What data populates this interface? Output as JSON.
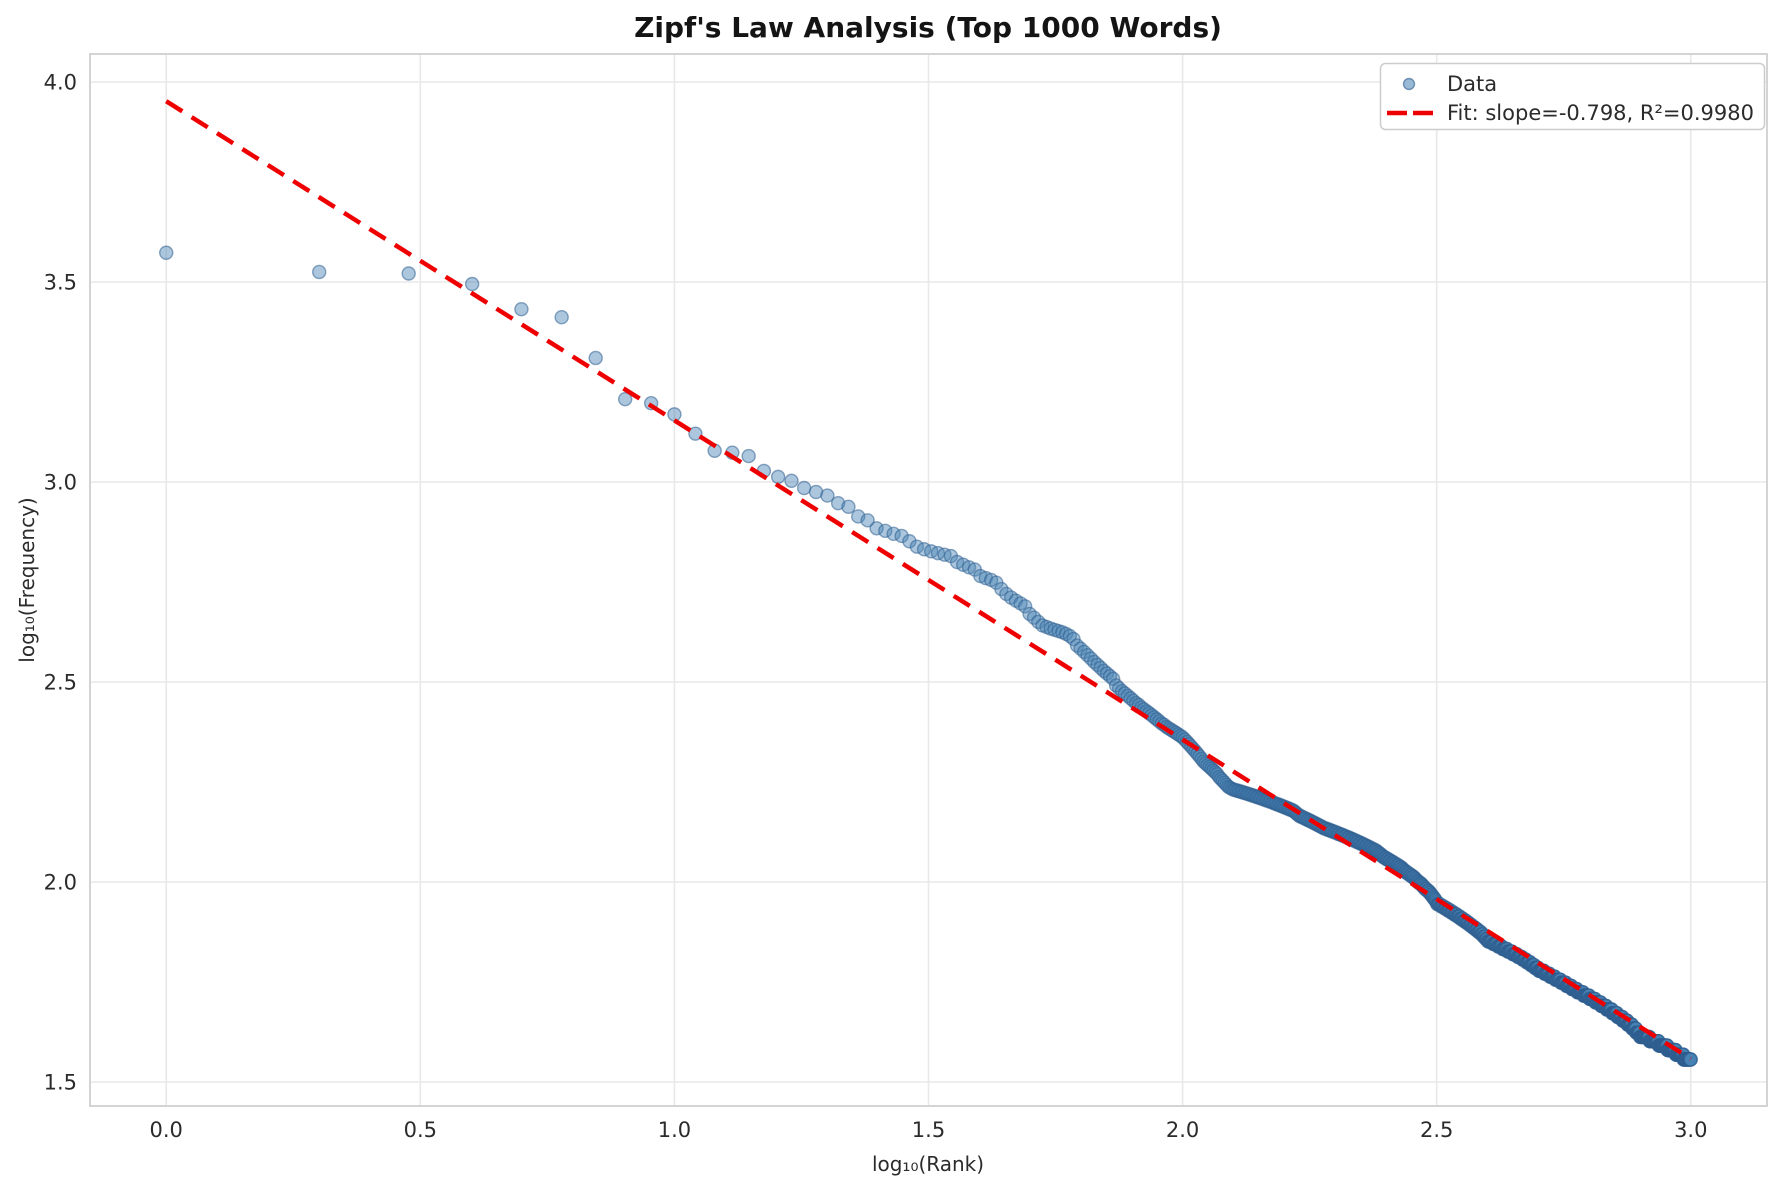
{
  "figure": {
    "background": "#ffffff"
  },
  "chart_data": {
    "type": "scatter",
    "title": "Zipf's Law Analysis (Top 1000 Words)",
    "xlabel": "log₁₀(Rank)",
    "ylabel": "log₁₀(Frequency)",
    "xlim": [
      -0.15,
      3.15
    ],
    "ylim": [
      1.44,
      4.07
    ],
    "grid": true,
    "xticks": {
      "values": [
        0.0,
        0.5,
        1.0,
        1.5,
        2.0,
        2.5,
        3.0
      ],
      "labels": [
        "0.0",
        "0.5",
        "1.0",
        "1.5",
        "2.0",
        "2.5",
        "3.0"
      ]
    },
    "yticks": {
      "values": [
        1.5,
        2.0,
        2.5,
        3.0,
        3.5,
        4.0
      ],
      "labels": [
        "1.5",
        "2.0",
        "2.5",
        "3.0",
        "3.5",
        "4.0"
      ]
    },
    "colors": {
      "scatter_fill": "#4682b4",
      "scatter_edge": "#2f5f8f",
      "fit_line": "#ee0000",
      "grid_line": "#e8e8e8",
      "spine": "#d0d0d0",
      "text": "#2b2b2b"
    },
    "legend": {
      "position": "upper right",
      "entries": [
        {
          "label": "Data",
          "marker": "circle",
          "color": "#4682b4"
        },
        {
          "label": "Fit: slope=-0.798, R²=0.9980",
          "marker": "dashed-line",
          "color": "#ee0000"
        }
      ]
    },
    "series": [
      {
        "name": "Data",
        "kind": "scatter",
        "color": "#4682b4",
        "alpha": 0.5,
        "x_axis": "log10(rank)",
        "y_axis": "log10(frequency)",
        "rank_frequency_runs": [
          [
            3742,
            1
          ],
          [
            3350,
            1
          ],
          [
            3321,
            1
          ],
          [
            3126,
            1
          ],
          [
            2704,
            1
          ],
          [
            2582,
            1
          ],
          [
            2042,
            1
          ],
          [
            1611,
            1
          ],
          [
            1574,
            1
          ],
          [
            1476,
            1
          ],
          [
            1321,
            1
          ],
          [
            1197,
            1
          ],
          [
            1184,
            1
          ],
          [
            1161,
            1
          ],
          [
            1066,
            1
          ],
          [
            1030,
            1
          ],
          [
            1007,
            1
          ],
          [
            966,
            1
          ],
          [
            944,
            1
          ],
          [
            925,
            1
          ],
          [
            885,
            1
          ],
          [
            867,
            1
          ],
          [
            820,
            1
          ],
          [
            802,
            1
          ],
          [
            766,
            1
          ],
          [
            755,
            1
          ],
          [
            742,
            1
          ],
          [
            733,
            1
          ],
          [
            711,
            1
          ],
          [
            689,
            1
          ],
          [
            679,
            1
          ],
          [
            671,
            1
          ],
          [
            664,
            1
          ],
          [
            658,
            1
          ],
          [
            653,
            1
          ],
          [
            631,
            1
          ],
          [
            621,
            1
          ],
          [
            612,
            1
          ],
          [
            604,
            1
          ],
          [
            582,
            1
          ],
          [
            575,
            1
          ],
          [
            569,
            1
          ],
          [
            560,
            1
          ],
          [
            540,
            1
          ],
          [
            525,
            1
          ],
          [
            514,
            1
          ],
          [
            505,
            1
          ],
          [
            497,
            1
          ],
          [
            489,
            1
          ],
          [
            468,
            1
          ],
          [
            458,
            1
          ],
          [
            447,
            1
          ],
          [
            438,
            1
          ],
          [
            434,
            1
          ],
          [
            430,
            1
          ],
          [
            427,
            1
          ],
          [
            424,
            1
          ],
          [
            421,
            1
          ],
          [
            417,
            1
          ],
          [
            412,
            1
          ],
          [
            405,
            1
          ],
          [
            390,
            1
          ],
          [
            383,
            1
          ],
          [
            376,
            1
          ],
          [
            369,
            1
          ],
          [
            362,
            1
          ],
          [
            355,
            1
          ],
          [
            349,
            1
          ],
          [
            343,
            1
          ],
          [
            337,
            1
          ],
          [
            332,
            1
          ],
          [
            327,
            1
          ],
          [
            322,
            1
          ],
          [
            310,
            1
          ],
          [
            305,
            1
          ],
          [
            300,
            1
          ],
          [
            296,
            1
          ],
          [
            292,
            1
          ],
          [
            288,
            1
          ],
          [
            284,
            1
          ],
          [
            280,
            1
          ],
          [
            277,
            1
          ],
          [
            273,
            1
          ],
          [
            270,
            1
          ],
          [
            267,
            1
          ],
          [
            264,
            1
          ],
          [
            261,
            1
          ],
          [
            258,
            1
          ],
          [
            255,
            1
          ],
          [
            252,
            1
          ],
          [
            249,
            1
          ],
          [
            247,
            1
          ],
          [
            244,
            1
          ],
          [
            242,
            1
          ],
          [
            240,
            1
          ],
          [
            238,
            1
          ],
          [
            236,
            1
          ],
          [
            234,
            1
          ],
          [
            232,
            1
          ],
          [
            230,
            1
          ],
          [
            227,
            1
          ],
          [
            224,
            1
          ],
          [
            221,
            1
          ],
          [
            218,
            1
          ],
          [
            215,
            1
          ],
          [
            212,
            1
          ],
          [
            209,
            1
          ],
          [
            206,
            1
          ],
          [
            203,
            1
          ],
          [
            200,
            1
          ],
          [
            198,
            1
          ],
          [
            196,
            1
          ],
          [
            194,
            1
          ],
          [
            192,
            1
          ],
          [
            190,
            1
          ],
          [
            188,
            1
          ],
          [
            186,
            1
          ],
          [
            183,
            1
          ],
          [
            181,
            1
          ],
          [
            179,
            1
          ],
          [
            177,
            1
          ],
          [
            175,
            1
          ],
          [
            173,
            1
          ],
          [
            172,
            1
          ],
          [
            171,
            1
          ],
          [
            170,
            2
          ],
          [
            169,
            2
          ],
          [
            168,
            2
          ],
          [
            167,
            2
          ],
          [
            166,
            2
          ],
          [
            165,
            2
          ],
          [
            164,
            2
          ],
          [
            163,
            2
          ],
          [
            162,
            2
          ],
          [
            161,
            2
          ],
          [
            160,
            2
          ],
          [
            159,
            2
          ],
          [
            158,
            2
          ],
          [
            157,
            2
          ],
          [
            156,
            2
          ],
          [
            155,
            2
          ],
          [
            154,
            2
          ],
          [
            153,
            2
          ],
          [
            152,
            2
          ],
          [
            151,
            2
          ],
          [
            150,
            1
          ],
          [
            149,
            1
          ],
          [
            148,
            1
          ],
          [
            147,
            1
          ],
          [
            146,
            2
          ],
          [
            145,
            2
          ],
          [
            144,
            2
          ],
          [
            143,
            2
          ],
          [
            142,
            2
          ],
          [
            141,
            2
          ],
          [
            140,
            2
          ],
          [
            139,
            2
          ],
          [
            138,
            2
          ],
          [
            137,
            2
          ],
          [
            136,
            3
          ],
          [
            135,
            3
          ],
          [
            134,
            3
          ],
          [
            133,
            3
          ],
          [
            132,
            3
          ],
          [
            131,
            3
          ],
          [
            130,
            3
          ],
          [
            129,
            3
          ],
          [
            128,
            3
          ],
          [
            127,
            3
          ],
          [
            126,
            3
          ],
          [
            125,
            3
          ],
          [
            124,
            3
          ],
          [
            123,
            3
          ],
          [
            122,
            3
          ],
          [
            121,
            3
          ],
          [
            120,
            3
          ],
          [
            119,
            2
          ],
          [
            118,
            2
          ],
          [
            117,
            2
          ],
          [
            116,
            2
          ],
          [
            115,
            3
          ],
          [
            114,
            3
          ],
          [
            113,
            3
          ],
          [
            112,
            3
          ],
          [
            111,
            3
          ],
          [
            110,
            3
          ],
          [
            109,
            3
          ],
          [
            108,
            2
          ],
          [
            107,
            2
          ],
          [
            106,
            3
          ],
          [
            105,
            3
          ],
          [
            104,
            3
          ],
          [
            103,
            3
          ],
          [
            102,
            2
          ],
          [
            101,
            2
          ],
          [
            100,
            3
          ],
          [
            99,
            3
          ],
          [
            98,
            2
          ],
          [
            97,
            2
          ],
          [
            96,
            3
          ],
          [
            95,
            3
          ],
          [
            94,
            2
          ],
          [
            93,
            2
          ],
          [
            92,
            2
          ],
          [
            91,
            2
          ],
          [
            90,
            2
          ],
          [
            89,
            1
          ],
          [
            88,
            5
          ],
          [
            87,
            5
          ],
          [
            86,
            5
          ],
          [
            85,
            5
          ],
          [
            84,
            5
          ],
          [
            83,
            5
          ],
          [
            82,
            5
          ],
          [
            81,
            5
          ],
          [
            80,
            5
          ],
          [
            79,
            5
          ],
          [
            78,
            5
          ],
          [
            77,
            5
          ],
          [
            76,
            5
          ],
          [
            75,
            5
          ],
          [
            74,
            4
          ],
          [
            73,
            4
          ],
          [
            72,
            4
          ],
          [
            71,
            9
          ],
          [
            70,
            9
          ],
          [
            69,
            9
          ],
          [
            68,
            10
          ],
          [
            67,
            10
          ],
          [
            66,
            10
          ],
          [
            65,
            10
          ],
          [
            64,
            9
          ],
          [
            63,
            9
          ],
          [
            62,
            9
          ],
          [
            61,
            9
          ],
          [
            60,
            13
          ],
          [
            59,
            13
          ],
          [
            58,
            13
          ],
          [
            57,
            14
          ],
          [
            56,
            14
          ],
          [
            55,
            14
          ],
          [
            54,
            15
          ],
          [
            53,
            17
          ],
          [
            52,
            17
          ],
          [
            51,
            17
          ],
          [
            50,
            17
          ],
          [
            49,
            17
          ],
          [
            48,
            17
          ],
          [
            47,
            17
          ],
          [
            46,
            17
          ],
          [
            45,
            17
          ],
          [
            44,
            16
          ],
          [
            43,
            14
          ],
          [
            42,
            14
          ],
          [
            41,
            35
          ],
          [
            40,
            35
          ],
          [
            39,
            35
          ],
          [
            38,
            35
          ],
          [
            37,
            33
          ],
          [
            36,
            33
          ]
        ]
      },
      {
        "name": "Fit",
        "kind": "line",
        "style": "dashed",
        "color": "#ee0000",
        "slope": -0.798,
        "r_squared": 0.998,
        "x": [
          0.0,
          3.0
        ],
        "y": [
          3.952,
          1.558
        ]
      }
    ]
  }
}
